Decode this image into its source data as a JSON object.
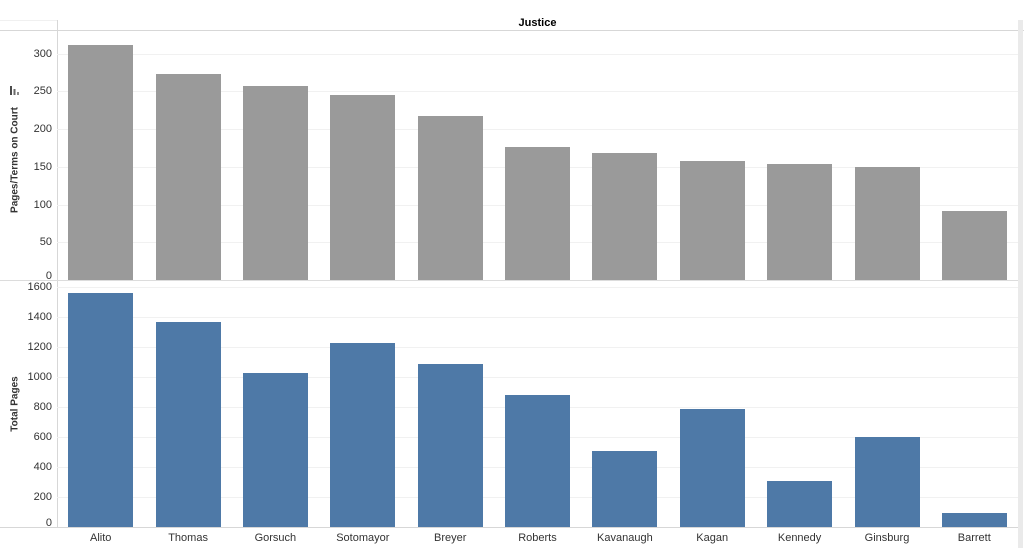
{
  "header": {
    "column_field_label": "Justice"
  },
  "axes": {
    "top_pane_ylabel": "Pages/Terms on Court",
    "top_pane_sort_icon": "sort-descending-bars-icon",
    "bottom_pane_ylabel": "Total Pages"
  },
  "colors": {
    "top_bar": "#9a9a9a",
    "bottom_bar": "#4e79a7",
    "gridline": "#f1f1f1",
    "border": "#d7d7d7",
    "text": "#333333"
  },
  "chart_data": [
    {
      "type": "bar",
      "title": "Justice",
      "ylabel": "Pages/Terms on Court",
      "categories": [
        "Alito",
        "Thomas",
        "Gorsuch",
        "Sotomayor",
        "Breyer",
        "Roberts",
        "Kavanaugh",
        "Kagan",
        "Kennedy",
        "Ginsburg",
        "Barrett"
      ],
      "values": [
        312,
        273,
        257,
        245,
        218,
        176,
        169,
        158,
        154,
        150,
        92
      ],
      "ylim": [
        0,
        330
      ],
      "yticks": [
        0,
        50,
        100,
        150,
        200,
        250,
        300
      ],
      "bar_color": "#9a9a9a",
      "grid": true,
      "legend": "none",
      "sorted": "descending"
    },
    {
      "type": "bar",
      "title": "Justice",
      "ylabel": "Total Pages",
      "categories": [
        "Alito",
        "Thomas",
        "Gorsuch",
        "Sotomayor",
        "Breyer",
        "Roberts",
        "Kavanaugh",
        "Kagan",
        "Kennedy",
        "Ginsburg",
        "Barrett"
      ],
      "values": [
        1560,
        1365,
        1030,
        1224,
        1090,
        880,
        507,
        790,
        308,
        600,
        92
      ],
      "ylim": [
        0,
        1640
      ],
      "yticks": [
        0,
        200,
        400,
        600,
        800,
        1000,
        1200,
        1400,
        1600
      ],
      "bar_color": "#4e79a7",
      "grid": true,
      "legend": "none"
    }
  ]
}
